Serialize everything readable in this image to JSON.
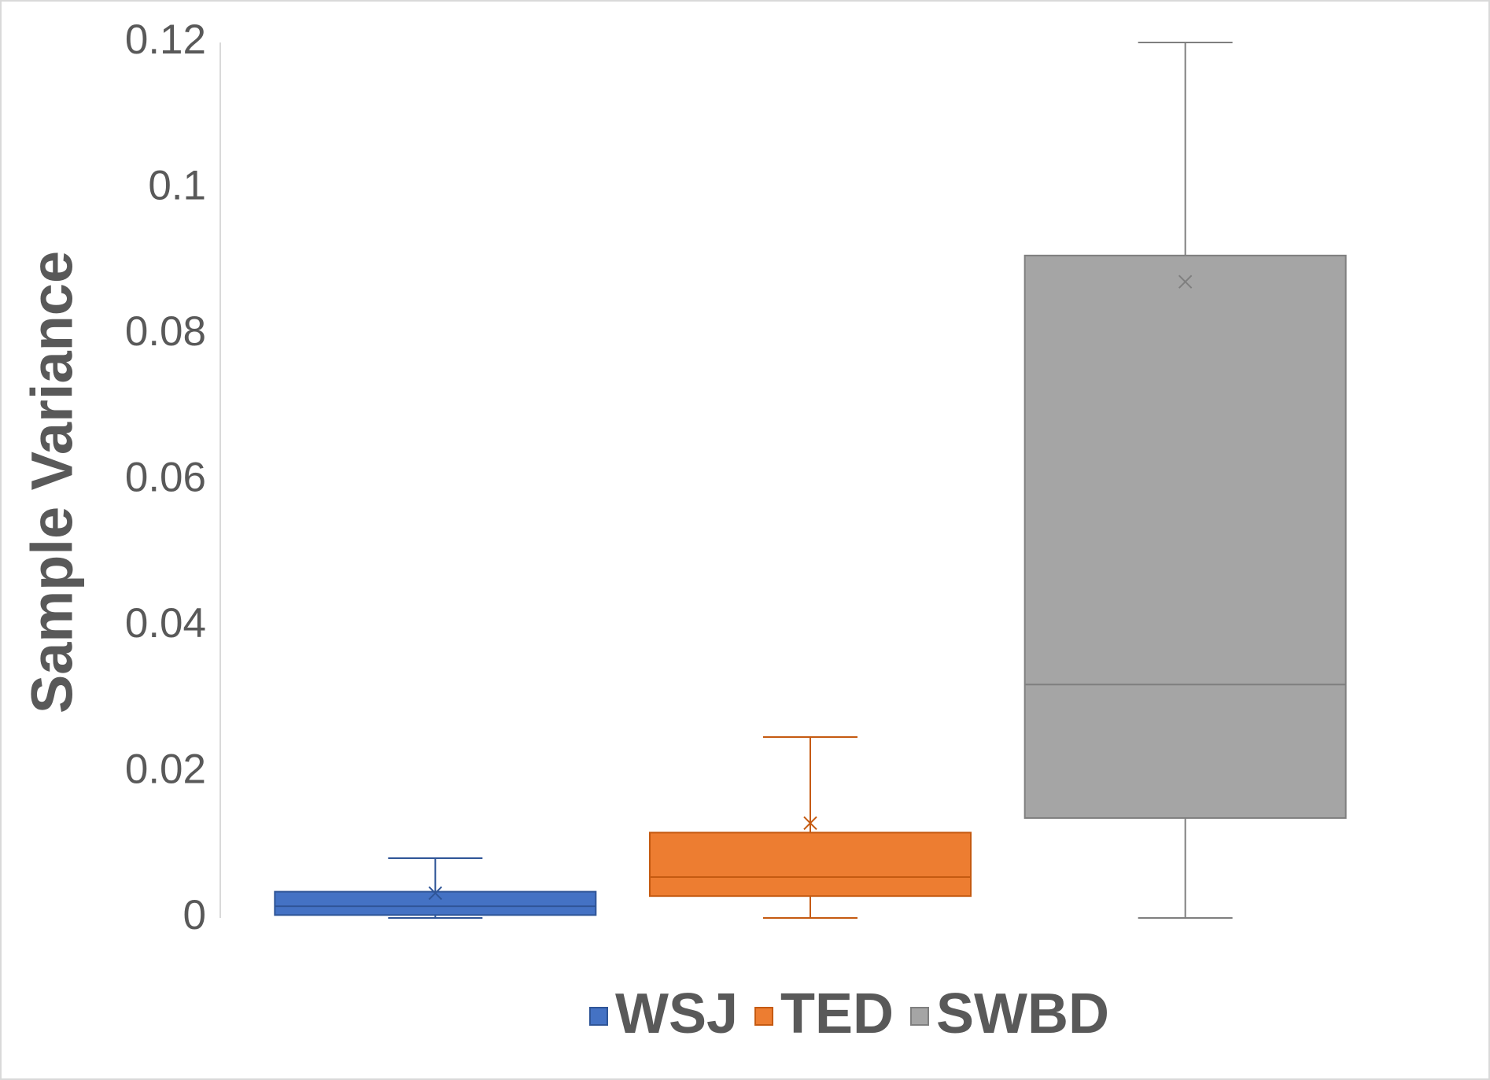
{
  "chart_data": {
    "type": "box",
    "y_label": "Sample Variance",
    "ylim": [
      0,
      0.12
    ],
    "yticks": [
      0,
      0.02,
      0.04,
      0.06,
      0.08,
      0.1,
      0.12
    ],
    "grid": false,
    "legend": "bottom",
    "series": [
      {
        "name": "WSJ",
        "color": "#4472c4",
        "edge_color": "#2f5597",
        "min": 0,
        "q1": 0.0004,
        "median": 0.0016,
        "q3": 0.0036,
        "max": 0.0082,
        "mean": 0.0034
      },
      {
        "name": "TED",
        "color": "#ed7d31",
        "edge_color": "#c55a11",
        "min": 0,
        "q1": 0.003,
        "median": 0.0056,
        "q3": 0.0117,
        "max": 0.0248,
        "mean": 0.013
      },
      {
        "name": "SWBD",
        "color": "#a5a5a5",
        "edge_color": "#7f7f7f",
        "min": 0,
        "q1": 0.0137,
        "median": 0.032,
        "q3": 0.0908,
        "max": 0.12,
        "mean": 0.0872
      }
    ]
  }
}
